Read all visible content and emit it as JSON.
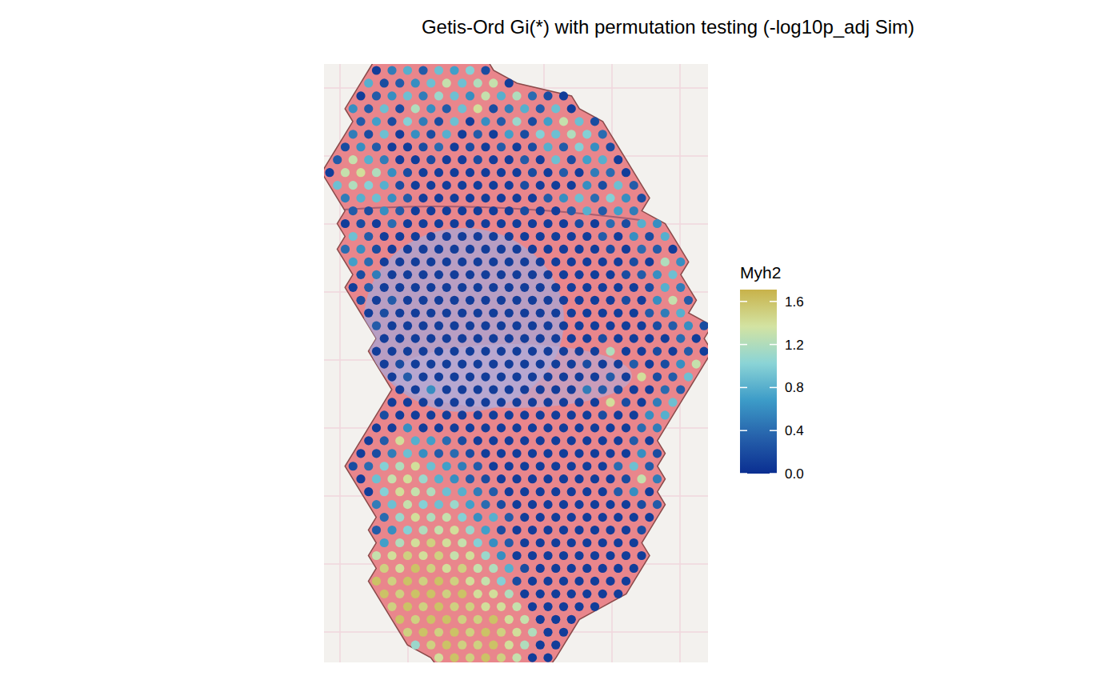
{
  "chart_data": {
    "type": "spatial",
    "title": "Getis-Ord Gi(*) with permutation testing (-log10p_adj Sim)",
    "color_label": "Myh2",
    "colors": [
      "#0a2e91",
      "#2661ab",
      "#3d9cc8",
      "#8bd4d6",
      "#d3e3a2",
      "#c8b24a"
    ],
    "colorbar_range": [
      0,
      1.71
    ],
    "colorbar_ticks": [
      {
        "value": 0,
        "label": "0.0"
      },
      {
        "value": 0.4,
        "label": "0.4"
      },
      {
        "value": 0.8,
        "label": "0.8"
      },
      {
        "value": 1.2,
        "label": "1.2"
      },
      {
        "value": 1.6,
        "label": "1.6"
      }
    ],
    "spots": [
      {
        "row": 0,
        "col": 6,
        "values": [
          0.1,
          0.5,
          0.8,
          0.3,
          0.9,
          0.7,
          1.0,
          0.2
        ]
      },
      {
        "row": 1,
        "col": 5,
        "values": [
          0.8,
          0.2,
          0.3,
          0.6,
          0.9,
          1.3,
          0.9,
          1.2,
          1.3,
          0.1
        ]
      },
      {
        "row": 2,
        "col": 4,
        "values": [
          0.1,
          0.3,
          0.6,
          0.9,
          0.5,
          1.1,
          0.9,
          0.6,
          1.3,
          0.8,
          1.2,
          0.4,
          0.2,
          0.1
        ]
      },
      {
        "row": 3,
        "col": 3,
        "values": [
          0.6,
          0.3,
          0.9,
          0.2,
          1.2,
          0.6,
          0.3,
          0.9,
          1.4,
          0.2,
          0.5,
          0.8,
          0.3,
          0.9,
          0.1
        ]
      },
      {
        "row": 4,
        "col": 4,
        "values": [
          0.3,
          0.7,
          0.2,
          1.0,
          0.5,
          0.2,
          0.9,
          0.1,
          0.6,
          0.3,
          1.1,
          0.2,
          0.7,
          1.3,
          0.9,
          0.2
        ]
      },
      {
        "row": 5,
        "col": 3,
        "values": [
          0.5,
          0.2,
          0.9,
          0.1,
          0.6,
          0.2,
          0.8,
          0.1,
          0.3,
          0.1,
          0.7,
          0.2,
          1.0,
          0.9,
          1.2,
          1.0,
          0.4
        ]
      },
      {
        "row": 6,
        "col": 2,
        "values": [
          0.2,
          0.6,
          0.3,
          0.1,
          0.1,
          0.2,
          0.4,
          0.1,
          0.2,
          0.1,
          0.3,
          0.1,
          0.2,
          0.8,
          0.3,
          1.0,
          0.6,
          0.2
        ]
      },
      {
        "row": 7,
        "col": 1,
        "values": [
          0.3,
          1.3,
          0.8,
          0.5,
          0.1,
          0.1,
          0.2,
          0.1,
          0.1,
          0.2,
          0.1,
          0.1,
          0.3,
          0.1,
          0.9,
          0.2,
          0.7,
          0.8,
          0.1
        ]
      },
      {
        "row": 8,
        "col": 0,
        "values": [
          0.1,
          1.3,
          1.4,
          1.2,
          0.6,
          0.2,
          0.1,
          0.1,
          0.1,
          0.1,
          0.1,
          0.1,
          0.1,
          0.2,
          0.1,
          0.3,
          0.1,
          0.5,
          0.4,
          0.1
        ]
      },
      {
        "row": 9,
        "col": 1,
        "values": [
          0.9,
          1.2,
          1.0,
          0.8,
          0.2,
          0.1,
          0.1,
          0.1,
          0.1,
          0.1,
          0.1,
          0.1,
          0.2,
          0.1,
          0.1,
          0.1,
          0.6,
          0.2,
          0.9,
          0.3
        ]
      },
      {
        "row": 10,
        "col": 2,
        "values": [
          0.5,
          0.8,
          0.9,
          0.6,
          0.3,
          0.1,
          0.1,
          0.1,
          0.1,
          0.1,
          0.1,
          0.1,
          0.1,
          0.3,
          0.6,
          0.9,
          0.4,
          1.0,
          0.6,
          0.2
        ]
      },
      {
        "row": 11,
        "col": 3,
        "values": [
          0.3,
          0.2,
          0.6,
          0.3,
          0.1,
          0.1,
          0.1,
          0.1,
          0.1,
          0.1,
          0.1,
          0.2,
          0.1,
          0.1,
          0.3,
          0.8,
          0.3,
          0.7,
          0.5
        ]
      },
      {
        "row": 12,
        "col": 2,
        "values": [
          0.1,
          0.2,
          0.1,
          0.4,
          0.1,
          0.1,
          0.1,
          0.1,
          0.1,
          0.1,
          0.1,
          0.1,
          0.1,
          0.1,
          0.1,
          0.2,
          0.1,
          0.4,
          0.2,
          0.8,
          0.6
        ]
      },
      {
        "row": 13,
        "col": 3,
        "values": [
          0.9,
          0.3,
          0.1,
          0.1,
          0.1,
          0.1,
          0.1,
          0.1,
          0.1,
          0.1,
          0.1,
          0.1,
          0.1,
          0.1,
          0.1,
          0.1,
          0.3,
          0.1,
          0.6,
          0.2,
          0.8
        ]
      },
      {
        "row": 14,
        "col": 2,
        "values": [
          0.4,
          0.6,
          0.2,
          0.1,
          0.1,
          0.1,
          0.1,
          0.1,
          0.1,
          0.1,
          0.1,
          0.1,
          0.1,
          0.1,
          0.1,
          0.1,
          0.1,
          0.2,
          0.1,
          0.4,
          0.3,
          0.1
        ]
      },
      {
        "row": 15,
        "col": 3,
        "values": [
          0.7,
          0.4,
          0.1,
          0.1,
          0.1,
          0.1,
          0.1,
          0.1,
          0.1,
          0.1,
          0.1,
          0.1,
          0.1,
          0.1,
          0.1,
          0.1,
          0.1,
          0.1,
          0.2,
          0.1,
          1.2,
          0.6
        ]
      },
      {
        "row": 16,
        "col": 4,
        "values": [
          0.2,
          0.5,
          0.1,
          0.1,
          0.1,
          0.1,
          0.1,
          0.1,
          0.1,
          0.1,
          0.1,
          0.1,
          0.1,
          0.1,
          0.1,
          0.1,
          0.1,
          0.2,
          0.3,
          0.6,
          0.9
        ]
      },
      {
        "row": 17,
        "col": 3,
        "values": [
          0.1,
          0.3,
          0.1,
          0.1,
          0.1,
          0.1,
          0.1,
          0.1,
          0.1,
          0.1,
          0.1,
          0.1,
          0.1,
          0.1,
          0.1,
          0.1,
          0.1,
          0.1,
          0.1,
          0.2,
          0.8,
          0.5
        ]
      },
      {
        "row": 18,
        "col": 4,
        "values": [
          0.2,
          0.1,
          0.3,
          0.1,
          0.1,
          0.1,
          0.1,
          0.1,
          0.1,
          0.1,
          0.1,
          0.1,
          0.1,
          0.1,
          0.1,
          0.1,
          0.1,
          0.2,
          0.1,
          0.6,
          1.3,
          0.3
        ]
      },
      {
        "row": 19,
        "col": 5,
        "values": [
          0.1,
          0.2,
          0.1,
          0.1,
          0.1,
          0.1,
          0.1,
          0.1,
          0.1,
          0.1,
          0.1,
          0.1,
          0.1,
          0.1,
          0.1,
          0.1,
          0.1,
          0.1,
          0.3,
          0.5,
          0.8
        ]
      },
      {
        "row": 20,
        "col": 6,
        "values": [
          0.3,
          0.1,
          0.1,
          0.1,
          0.1,
          0.1,
          0.1,
          0.1,
          0.1,
          0.1,
          0.1,
          0.1,
          0.1,
          0.1,
          0.1,
          0.1,
          0.1,
          0.1,
          0.2,
          0.3,
          0.6,
          0.2
        ]
      },
      {
        "row": 21,
        "col": 7,
        "values": [
          0.1,
          0.1,
          0.1,
          0.1,
          0.1,
          0.1,
          0.1,
          0.1,
          0.1,
          0.1,
          0.1,
          0.1,
          0.1,
          0.1,
          0.2,
          0.1,
          0.1,
          0.1,
          0.1,
          0.4,
          0.1
        ]
      },
      {
        "row": 22,
        "col": 6,
        "values": [
          0.1,
          0.1,
          0.1,
          0.1,
          0.1,
          0.1,
          0.1,
          0.1,
          0.1,
          0.1,
          0.1,
          0.1,
          0.1,
          0.1,
          0.1,
          1.2,
          0.1,
          0.1,
          0.2,
          0.1,
          0.3,
          0.1
        ]
      },
      {
        "row": 23,
        "col": 7,
        "values": [
          0.1,
          0.2,
          0.1,
          0.1,
          0.1,
          0.1,
          0.1,
          0.1,
          0.1,
          0.1,
          0.1,
          0.1,
          0.1,
          0.2,
          0.1,
          0.1,
          0.3,
          0.1,
          0.2,
          0.6,
          1.3
        ]
      },
      {
        "row": 24,
        "col": 8,
        "values": [
          0.1,
          0.3,
          0.1,
          0.1,
          0.1,
          0.1,
          0.1,
          0.1,
          0.1,
          0.1,
          0.1,
          0.1,
          0.1,
          0.1,
          0.3,
          0.1,
          1.4,
          0.2,
          0.3,
          0.9
        ]
      },
      {
        "row": 25,
        "col": 9,
        "values": [
          0.1,
          0.1,
          0.6,
          0.1,
          0.1,
          0.1,
          0.1,
          0.1,
          0.1,
          0.1,
          0.1,
          0.1,
          0.5,
          0.3,
          0.2,
          0.1,
          0.1,
          0.4,
          0.3
        ]
      },
      {
        "row": 26,
        "col": 8,
        "values": [
          0.1,
          0.1,
          0.1,
          0.1,
          0.1,
          0.1,
          0.1,
          0.1,
          0.1,
          0.1,
          0.1,
          0.1,
          0.1,
          0.1,
          1.4,
          0.2,
          0.1,
          0.5,
          0.9
        ]
      },
      {
        "row": 27,
        "col": 7,
        "values": [
          0.2,
          0.1,
          0.1,
          0.1,
          0.1,
          0.1,
          0.1,
          0.1,
          0.1,
          0.1,
          0.1,
          0.1,
          0.1,
          0.1,
          0.2,
          0.1,
          0.1,
          0.6,
          0.8
        ]
      },
      {
        "row": 28,
        "col": 6,
        "values": [
          0.1,
          0.1,
          0.6,
          0.1,
          0.1,
          0.1,
          0.1,
          0.1,
          0.1,
          0.1,
          0.1,
          0.1,
          0.1,
          0.1,
          0.1,
          0.1,
          0.1,
          0.4,
          0.5
        ]
      },
      {
        "row": 29,
        "col": 5,
        "values": [
          0.1,
          0.3,
          1.4,
          0.8,
          0.7,
          0.4,
          0.2,
          0.1,
          0.1,
          0.1,
          0.1,
          0.1,
          0.1,
          0.1,
          0.1,
          0.1,
          0.1,
          0.3,
          0.1
        ]
      },
      {
        "row": 30,
        "col": 4,
        "values": [
          0.1,
          0.2,
          0.5,
          0.9,
          0.6,
          0.3,
          0.4,
          0.2,
          0.1,
          0.1,
          0.1,
          0.1,
          0.1,
          0.1,
          0.1,
          0.1,
          0.1,
          0.1,
          0.6,
          0.2
        ]
      },
      {
        "row": 31,
        "col": 3,
        "values": [
          0.2,
          0.4,
          1.0,
          1.2,
          1.4,
          0.9,
          0.7,
          0.5,
          0.3,
          0.1,
          0.1,
          0.1,
          0.1,
          0.1,
          0.1,
          0.1,
          0.1,
          0.4,
          0.9,
          0.3
        ]
      },
      {
        "row": 32,
        "col": 4,
        "values": [
          0.1,
          0.9,
          1.3,
          1.4,
          1.1,
          0.8,
          0.6,
          0.3,
          0.2,
          0.1,
          0.1,
          0.1,
          0.1,
          0.1,
          0.1,
          0.1,
          0.1,
          0.2,
          1.3,
          0.5
        ]
      },
      {
        "row": 33,
        "col": 5,
        "values": [
          0.1,
          1.0,
          1.4,
          1.3,
          1.2,
          0.9,
          0.8,
          0.5,
          0.3,
          0.1,
          0.1,
          0.1,
          0.1,
          0.1,
          0.1,
          0.1,
          0.3,
          0.6,
          0.1
        ]
      },
      {
        "row": 34,
        "col": 6,
        "values": [
          0.5,
          0.9,
          1.3,
          1.0,
          0.9,
          1.1,
          0.7,
          0.4,
          0.2,
          0.1,
          0.1,
          0.1,
          0.1,
          0.1,
          0.1,
          0.1,
          0.1,
          0.2,
          0.3
        ]
      },
      {
        "row": 35,
        "col": 7,
        "values": [
          0.4,
          1.1,
          1.4,
          1.2,
          1.3,
          1.0,
          0.6,
          0.8,
          0.3,
          0.1,
          0.1,
          0.1,
          0.1,
          0.1,
          0.1,
          0.1,
          0.1,
          0.1
        ]
      },
      {
        "row": 36,
        "col": 6,
        "values": [
          0.3,
          0.6,
          1.0,
          1.2,
          1.3,
          1.4,
          1.1,
          0.7,
          0.2,
          0.1,
          0.1,
          0.1,
          0.1,
          0.1,
          0.1,
          0.1,
          0.1,
          0.2
        ]
      },
      {
        "row": 37,
        "col": 7,
        "values": [
          0.7,
          1.2,
          1.4,
          1.5,
          1.4,
          1.3,
          1.0,
          0.6,
          0.3,
          0.1,
          0.1,
          0.1,
          0.1,
          0.1,
          0.1,
          0.1,
          0.1
        ]
      },
      {
        "row": 38,
        "col": 6,
        "values": [
          1.3,
          1.4,
          1.5,
          1.4,
          1.5,
          1.3,
          1.4,
          1.1,
          0.6,
          0.1,
          0.1,
          0.1,
          0.1,
          0.1,
          0.1,
          0.1,
          0.1,
          0.1
        ]
      },
      {
        "row": 39,
        "col": 7,
        "values": [
          1.5,
          1.4,
          1.6,
          1.5,
          1.4,
          1.5,
          1.3,
          1.2,
          0.8,
          0.2,
          0.1,
          0.1,
          0.1,
          0.1,
          0.1,
          0.1,
          0.1
        ]
      },
      {
        "row": 40,
        "col": 6,
        "values": [
          1.6,
          1.5,
          1.6,
          1.5,
          1.6,
          1.5,
          1.4,
          1.3,
          1.0,
          0.2,
          0.1,
          0.1,
          0.1,
          0.1,
          0.1,
          0.1,
          0.1
        ]
      },
      {
        "row": 41,
        "col": 7,
        "values": [
          1.6,
          1.5,
          1.6,
          1.6,
          1.5,
          1.6,
          1.4,
          1.4,
          1.2,
          0.1,
          0.1,
          0.1,
          0.1,
          0.1,
          0.1,
          0.1
        ]
      },
      {
        "row": 42,
        "col": 8,
        "values": [
          1.5,
          1.6,
          1.5,
          1.6,
          1.5,
          1.5,
          1.4,
          1.4,
          1.3,
          0.1,
          0.1,
          0.1,
          0.1,
          0.1
        ]
      },
      {
        "row": 43,
        "col": 9,
        "values": [
          1.6,
          1.5,
          1.6,
          1.6,
          1.5,
          1.5,
          1.6,
          1.4,
          1.3,
          0.1,
          0.1,
          0.1
        ]
      },
      {
        "row": 44,
        "col": 10,
        "values": [
          1.5,
          1.6,
          1.5,
          1.6,
          1.5,
          1.6,
          1.5,
          1.4,
          1.2,
          0.1,
          0.1
        ]
      },
      {
        "row": 45,
        "col": 11,
        "values": [
          1.1,
          1.5,
          1.6,
          1.5,
          1.5,
          1.6,
          1.4,
          1.2,
          0.1,
          0.1
        ]
      },
      {
        "row": 46,
        "col": 14,
        "values": [
          1.4,
          1.6,
          1.5,
          1.6,
          1.5,
          1.3,
          0.1,
          0.1
        ]
      }
    ]
  }
}
